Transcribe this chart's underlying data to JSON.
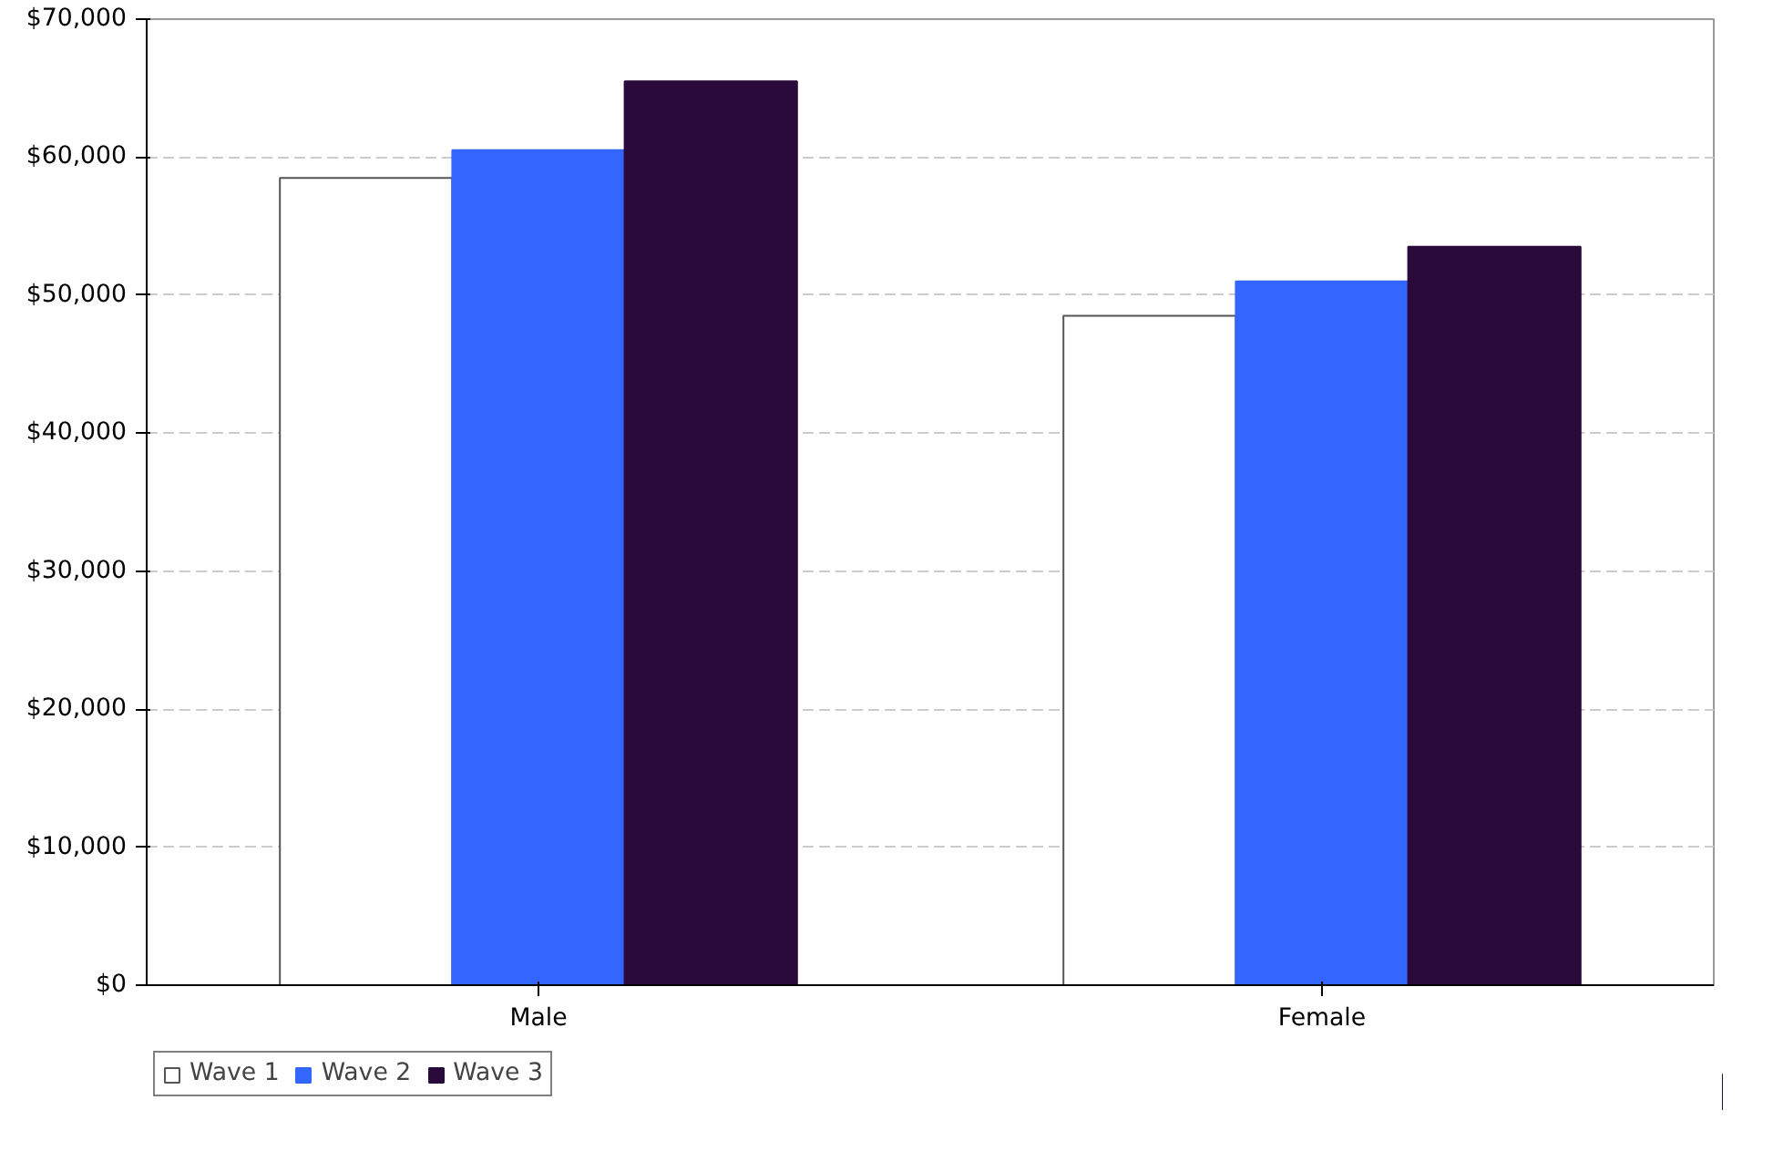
{
  "chart_data": {
    "type": "bar",
    "categories": [
      "Male",
      "Female"
    ],
    "series": [
      {
        "name": "Wave 1",
        "color": "#ffffff",
        "values": [
          58500,
          48500
        ]
      },
      {
        "name": "Wave 2",
        "color": "#3366ff",
        "values": [
          60500,
          51000
        ]
      },
      {
        "name": "Wave 3",
        "color": "#2a0a3a",
        "values": [
          65500,
          53500
        ]
      }
    ],
    "ylim": [
      0,
      70000
    ],
    "yticks": [
      {
        "value": 0,
        "label": "$0"
      },
      {
        "value": 10000,
        "label": "$10,000"
      },
      {
        "value": 20000,
        "label": "$20,000"
      },
      {
        "value": 30000,
        "label": "$30,000"
      },
      {
        "value": 40000,
        "label": "$40,000"
      },
      {
        "value": 50000,
        "label": "$50,000"
      },
      {
        "value": 60000,
        "label": "$60,000"
      },
      {
        "value": 70000,
        "label": "$70,000"
      }
    ],
    "grid": "y",
    "legend": "bottom left"
  }
}
